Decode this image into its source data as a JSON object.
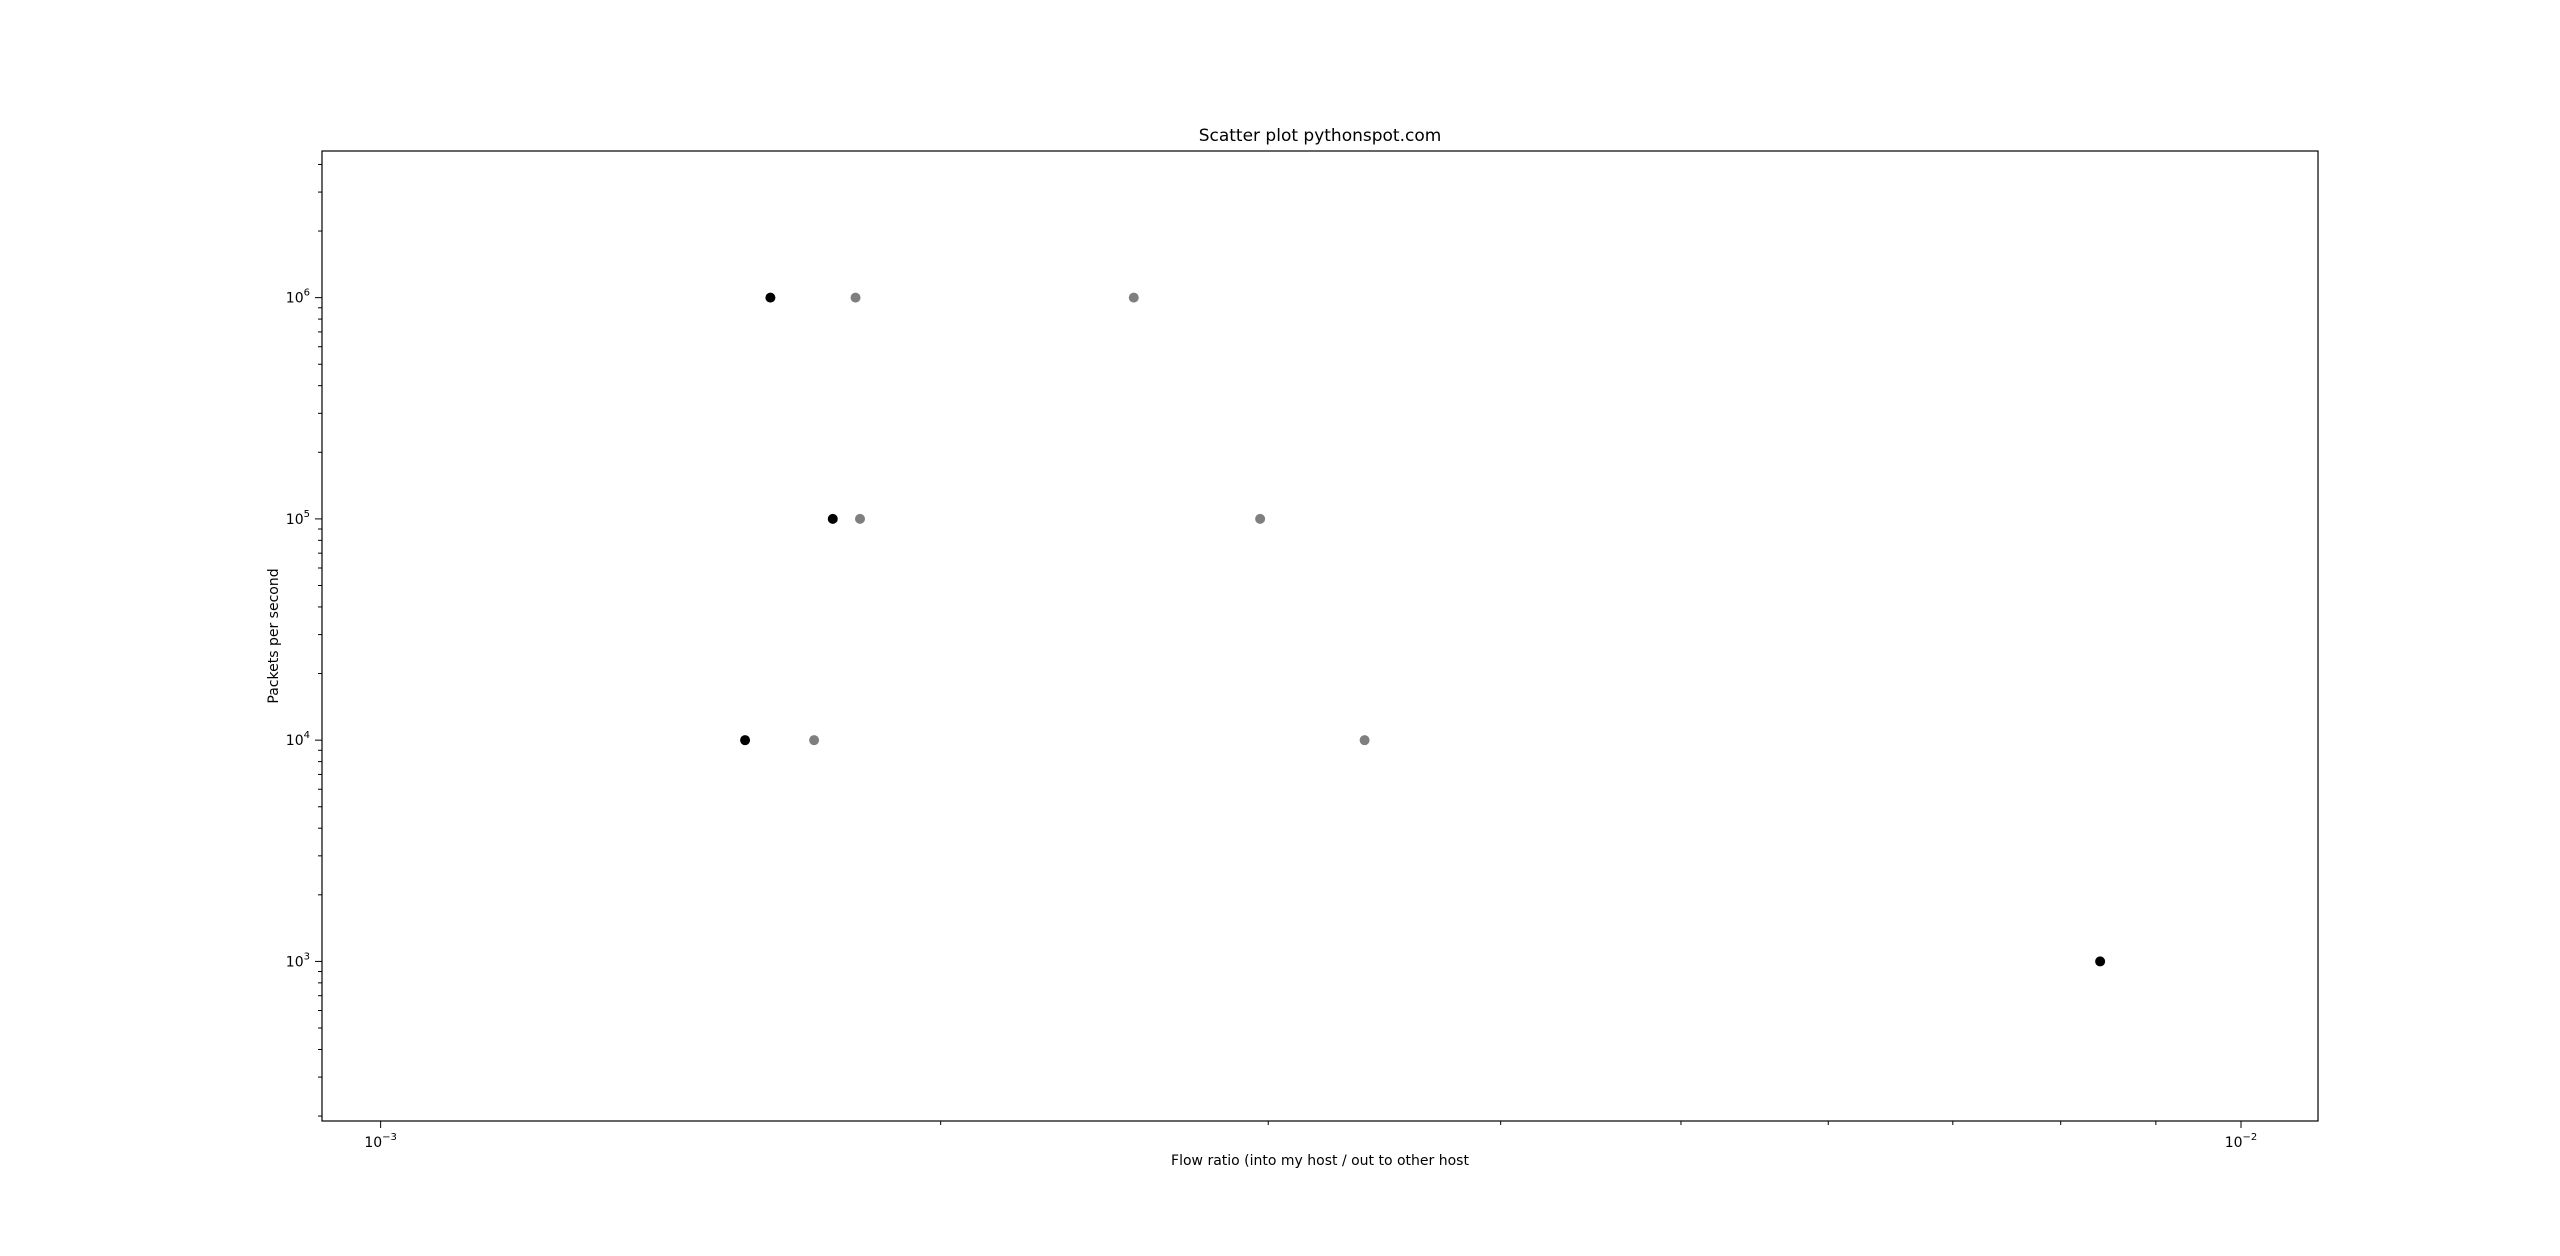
{
  "chart_data": {
    "type": "scatter",
    "title": "Scatter plot pythonspot.com",
    "xlabel": "Flow ratio (into my host / out to other host",
    "ylabel": "Packets per second",
    "xscale": "log",
    "yscale": "log",
    "xlim": [
      0.00093,
      0.011
    ],
    "ylim": [
      190,
      4600000
    ],
    "grid": false,
    "legend": "none",
    "xticks": [
      {
        "value": 0.001,
        "base": "10",
        "exp": "−3"
      },
      {
        "value": 0.01,
        "base": "10",
        "exp": "−2"
      }
    ],
    "yticks": [
      {
        "value": 1000,
        "base": "10",
        "exp": "3"
      },
      {
        "value": 10000,
        "base": "10",
        "exp": "4"
      },
      {
        "value": 100000,
        "base": "10",
        "exp": "5"
      },
      {
        "value": 1000000,
        "base": "10",
        "exp": "6"
      }
    ],
    "series": [
      {
        "color": "#000000",
        "points": [
          {
            "x": 0.00162,
            "y": 1000000
          },
          {
            "x": 0.00175,
            "y": 100000
          },
          {
            "x": 0.00157,
            "y": 10000
          },
          {
            "x": 0.0084,
            "y": 1000
          }
        ]
      },
      {
        "color": "#7f7f7f",
        "points": [
          {
            "x": 0.0018,
            "y": 1000000
          },
          {
            "x": 0.00254,
            "y": 1000000
          },
          {
            "x": 0.00181,
            "y": 100000
          },
          {
            "x": 0.00297,
            "y": 100000
          },
          {
            "x": 0.00171,
            "y": 10000
          },
          {
            "x": 0.00338,
            "y": 10000
          }
        ]
      }
    ]
  }
}
